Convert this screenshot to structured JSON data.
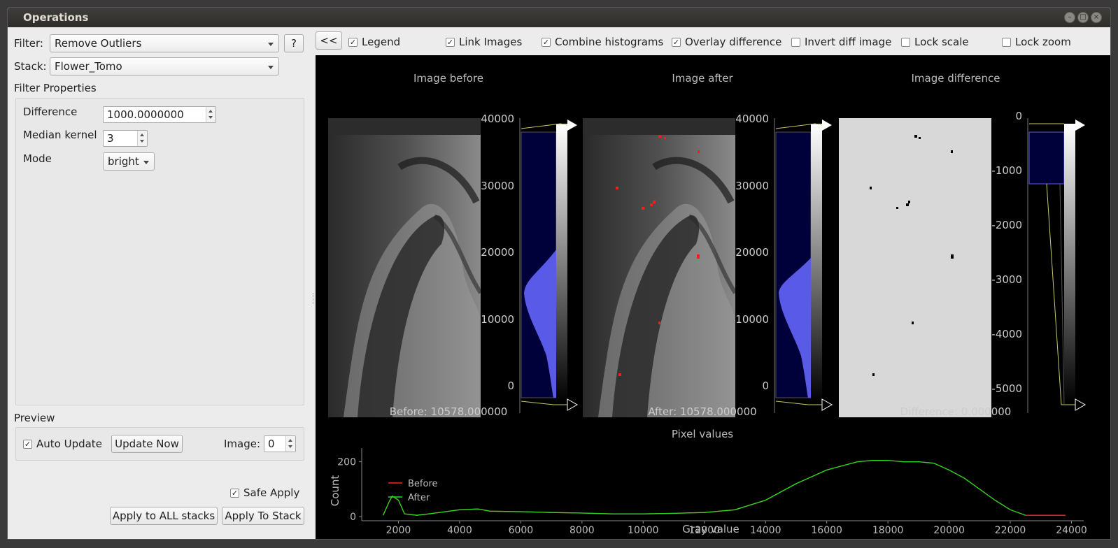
{
  "window": {
    "title": "Operations"
  },
  "filter": {
    "label": "Filter:",
    "value": "Remove Outliers",
    "help": "?"
  },
  "stack": {
    "label": "Stack:",
    "value": "Flower_Tomo"
  },
  "filter_properties": {
    "label": "Filter Properties",
    "difference": {
      "label": "Difference",
      "value": "1000.0000000"
    },
    "median_kernel": {
      "label": "Median kernel",
      "value": "3"
    },
    "mode": {
      "label": "Mode",
      "value": "bright"
    }
  },
  "preview": {
    "label": "Preview",
    "auto_update": "Auto Update",
    "update_now": "Update Now",
    "image_label": "Image:",
    "image_value": "0"
  },
  "safe_apply": "Safe Apply",
  "apply_all": "Apply to ALL stacks",
  "apply_stack": "Apply To Stack",
  "toolbar": {
    "collapse": "<<",
    "legend": {
      "label": "Legend",
      "checked": true
    },
    "link_images": {
      "label": "Link Images",
      "checked": true
    },
    "combine_histograms": {
      "label": "Combine histograms",
      "checked": true
    },
    "overlay_difference": {
      "label": "Overlay difference",
      "checked": true
    },
    "invert_diff": {
      "label": "Invert diff image",
      "checked": false
    },
    "lock_scale": {
      "label": "Lock scale",
      "checked": false
    },
    "lock_zoom": {
      "label": "Lock zoom",
      "checked": false
    }
  },
  "panels": {
    "before": {
      "title": "Image before",
      "value": "Before: 10578.000000",
      "ticks": [
        "40000",
        "30000",
        "20000",
        "10000",
        "0"
      ]
    },
    "after": {
      "title": "Image after",
      "value": "After: 10578.000000",
      "ticks": [
        "40000",
        "30000",
        "20000",
        "10000",
        "0"
      ]
    },
    "difference": {
      "title": "Image difference",
      "value": "Difference: 0.000000",
      "ticks": [
        "0",
        "-1000",
        "-2000",
        "-3000",
        "-4000",
        "-5000"
      ]
    }
  },
  "chart_data": {
    "type": "line",
    "title": "Pixel values",
    "xlabel": "Gray value",
    "ylabel": "Count",
    "xlim": [
      800,
      24400
    ],
    "ylim": [
      -15,
      250
    ],
    "x_ticks": [
      2000,
      4000,
      6000,
      8000,
      10000,
      12000,
      14000,
      16000,
      18000,
      20000,
      22000,
      24000
    ],
    "y_ticks": [
      0,
      200
    ],
    "legend_position": "top-left",
    "colors": {
      "Before": "#ff2020",
      "After": "#22dd22"
    },
    "series": [
      {
        "name": "Before",
        "x": [
          1500,
          1700,
          1800,
          2000,
          2200,
          2600,
          3000,
          4000,
          4600,
          5000,
          6000,
          7000,
          8000,
          9000,
          10000,
          11000,
          12000,
          13000,
          14000,
          15000,
          16000,
          17000,
          17500,
          18000,
          18500,
          19000,
          19500,
          20000,
          20500,
          21000,
          21500,
          22000,
          22500,
          23000,
          23500,
          23800
        ],
        "y": [
          5,
          55,
          75,
          60,
          10,
          5,
          10,
          25,
          28,
          20,
          18,
          15,
          13,
          10,
          10,
          12,
          15,
          25,
          60,
          120,
          170,
          200,
          205,
          205,
          200,
          200,
          195,
          170,
          140,
          100,
          60,
          25,
          5,
          5,
          5,
          5
        ]
      },
      {
        "name": "After",
        "x": [
          1500,
          1700,
          1800,
          2000,
          2200,
          2600,
          3000,
          4000,
          4600,
          5000,
          6000,
          7000,
          8000,
          9000,
          10000,
          11000,
          12000,
          13000,
          14000,
          15000,
          16000,
          17000,
          17500,
          18000,
          18500,
          19000,
          19500,
          20000,
          20500,
          21000,
          21500,
          22000,
          22500
        ],
        "y": [
          5,
          55,
          75,
          60,
          10,
          5,
          10,
          25,
          28,
          20,
          18,
          15,
          13,
          10,
          10,
          12,
          15,
          25,
          60,
          120,
          170,
          200,
          205,
          205,
          200,
          200,
          195,
          170,
          140,
          100,
          60,
          25,
          5
        ]
      }
    ]
  }
}
